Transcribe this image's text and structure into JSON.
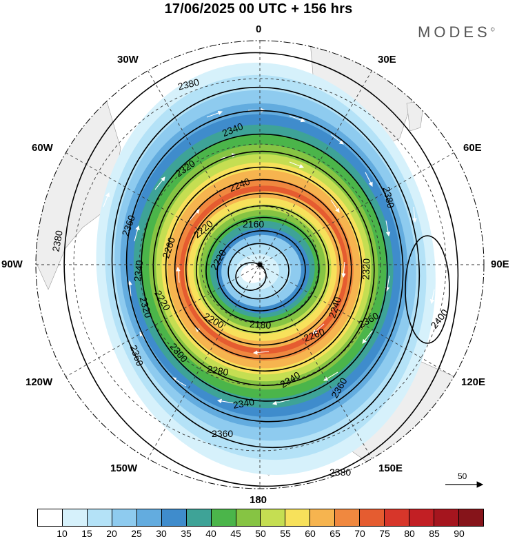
{
  "header": {
    "title": "17/06/2025  00 UTC  + 156 hrs",
    "brand": "MODES",
    "brand_mark": "©"
  },
  "map": {
    "projection": "south-polar-stereographic",
    "variable": "geopotential height contours (m) with wind speed shading and wind vectors",
    "longitude_labels": {
      "lon_0": "0",
      "lon_30e": "30E",
      "lon_60e": "60E",
      "lon_90e": "90E",
      "lon_120e": "120E",
      "lon_150e": "150E",
      "lon_180": "180",
      "lon_150w": "150W",
      "lon_120w": "120W",
      "lon_90w": "90W",
      "lon_60w": "60W",
      "lon_30w": "30W"
    },
    "contour_labels": [
      "2380",
      "2360",
      "2340",
      "2320",
      "2300",
      "2280",
      "2260",
      "2240",
      "2220",
      "2200",
      "2180",
      "2160",
      "2400"
    ],
    "reference_vector": {
      "label": "50"
    }
  },
  "colorbar": {
    "colors": [
      "#ffffff",
      "#d6f1fb",
      "#b4e2f7",
      "#8ecbef",
      "#63acdf",
      "#3f8ccc",
      "#3ea397",
      "#4bb54a",
      "#86c443",
      "#c5de52",
      "#f7e15b",
      "#f6b44f",
      "#f0883f",
      "#e55c30",
      "#d7362a",
      "#c21f24",
      "#a5151e",
      "#86141a"
    ],
    "labels": [
      "10",
      "15",
      "20",
      "25",
      "30",
      "35",
      "40",
      "45",
      "50",
      "55",
      "60",
      "65",
      "70",
      "75",
      "80",
      "85",
      "90"
    ]
  }
}
